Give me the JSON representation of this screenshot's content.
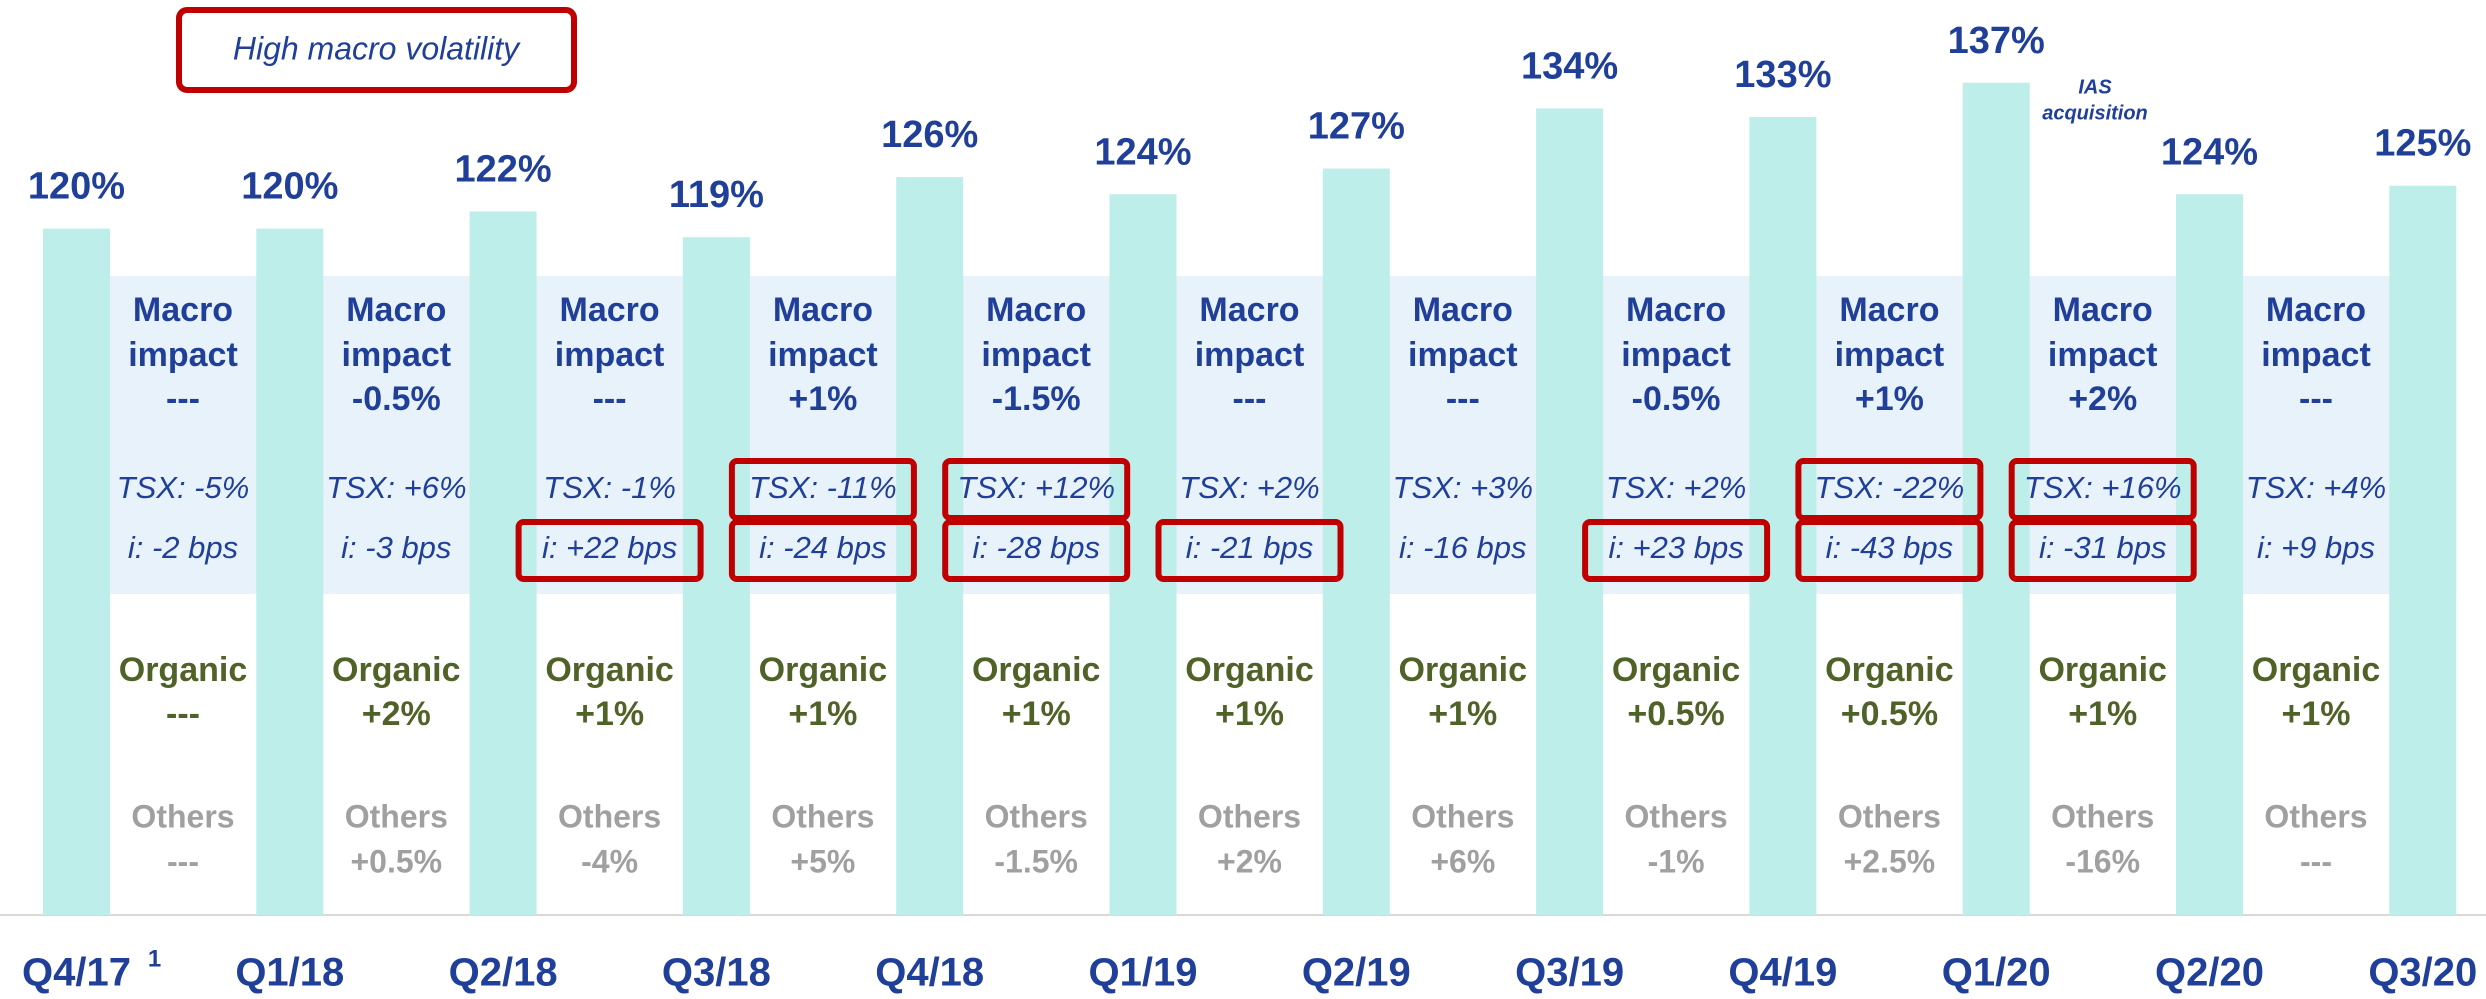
{
  "chart_data": {
    "type": "bar",
    "legend_label": "High macro volatility",
    "annotation": [
      "IAS",
      "acquisition"
    ],
    "categories": [
      "Q4/17",
      "Q1/18",
      "Q2/18",
      "Q3/18",
      "Q4/18",
      "Q1/19",
      "Q2/19",
      "Q3/19",
      "Q4/19",
      "Q1/20",
      "Q2/20",
      "Q3/20"
    ],
    "category_footnote": "1",
    "values": [
      120,
      120,
      122,
      119,
      126,
      124,
      127,
      134,
      133,
      137,
      124,
      125
    ],
    "value_labels": [
      "120%",
      "120%",
      "122%",
      "119%",
      "126%",
      "124%",
      "127%",
      "134%",
      "133%",
      "137%",
      "124%",
      "125%"
    ],
    "color": "#bdeee9",
    "ylim": [
      40,
      140
    ],
    "labels": {
      "macro": [
        "Macro",
        "impact"
      ],
      "organic": "Organic",
      "others": "Others"
    },
    "highlight_color": "#c00000",
    "gaps": [
      {
        "macro": "---",
        "tsx": "TSX: -5%",
        "rate": "i: -2 bps",
        "organic": "---",
        "others": "---",
        "tsx_highlight": false,
        "rate_highlight": false
      },
      {
        "macro": "-0.5%",
        "tsx": "TSX: +6%",
        "rate": "i: -3 bps",
        "organic": "+2%",
        "others": "+0.5%",
        "tsx_highlight": false,
        "rate_highlight": false
      },
      {
        "macro": "---",
        "tsx": "TSX: -1%",
        "rate": "i: +22 bps",
        "organic": "+1%",
        "others": "-4%",
        "tsx_highlight": false,
        "rate_highlight": true
      },
      {
        "macro": "+1%",
        "tsx": "TSX: -11%",
        "rate": "i: -24 bps",
        "organic": "+1%",
        "others": "+5%",
        "tsx_highlight": true,
        "rate_highlight": true
      },
      {
        "macro": "-1.5%",
        "tsx": "TSX: +12%",
        "rate": "i: -28 bps",
        "organic": "+1%",
        "others": "-1.5%",
        "tsx_highlight": true,
        "rate_highlight": true
      },
      {
        "macro": "---",
        "tsx": "TSX: +2%",
        "rate": "i: -21 bps",
        "organic": "+1%",
        "others": "+2%",
        "tsx_highlight": false,
        "rate_highlight": true
      },
      {
        "macro": "---",
        "tsx": "TSX: +3%",
        "rate": "i: -16 bps",
        "organic": "+1%",
        "others": "+6%",
        "tsx_highlight": false,
        "rate_highlight": false
      },
      {
        "macro": "-0.5%",
        "tsx": "TSX: +2%",
        "rate": "i: +23 bps",
        "organic": "+0.5%",
        "others": "-1%",
        "tsx_highlight": false,
        "rate_highlight": true
      },
      {
        "macro": "+1%",
        "tsx": "TSX: -22%",
        "rate": "i: -43 bps",
        "organic": "+0.5%",
        "others": "+2.5%",
        "tsx_highlight": true,
        "rate_highlight": true
      },
      {
        "macro": "+2%",
        "tsx": "TSX: +16%",
        "rate": "i: -31 bps",
        "organic": "+1%",
        "others": "-16%",
        "tsx_highlight": true,
        "rate_highlight": true
      },
      {
        "macro": "---",
        "tsx": "TSX: +4%",
        "rate": "i: +9 bps",
        "organic": "+1%",
        "others": "---",
        "tsx_highlight": false,
        "rate_highlight": false
      }
    ]
  }
}
